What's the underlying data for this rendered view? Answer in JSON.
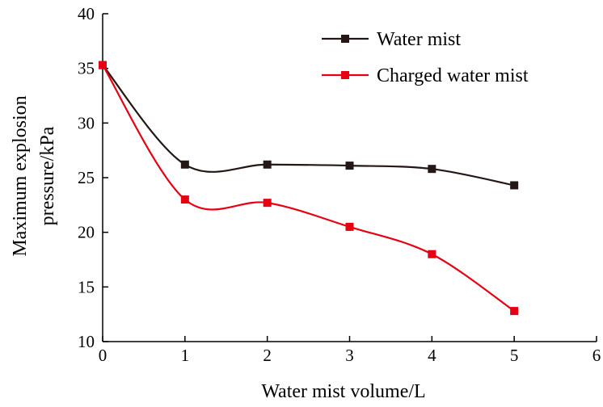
{
  "chart_data": {
    "type": "line",
    "xlabel": "Water mist volume/L",
    "ylabel_lines": [
      "Maximum explosion",
      "pressure/kPa"
    ],
    "xlim": [
      0,
      6
    ],
    "ylim": [
      10,
      40
    ],
    "x_ticks": [
      0,
      1,
      2,
      3,
      4,
      5,
      6
    ],
    "y_ticks": [
      10,
      15,
      20,
      25,
      30,
      35,
      40
    ],
    "grid": false,
    "legend_position": "top-right",
    "series": [
      {
        "name": "Water mist",
        "color": "#231815",
        "marker": "square",
        "x": [
          0,
          1,
          2,
          3,
          4,
          5
        ],
        "y": [
          35.3,
          26.2,
          26.2,
          26.1,
          25.8,
          24.3
        ]
      },
      {
        "name": "Charged water mist",
        "color": "#e60012",
        "marker": "square",
        "x": [
          0,
          1,
          2,
          3,
          4,
          5
        ],
        "y": [
          35.3,
          23.0,
          22.7,
          20.5,
          18.0,
          12.8
        ]
      }
    ]
  }
}
